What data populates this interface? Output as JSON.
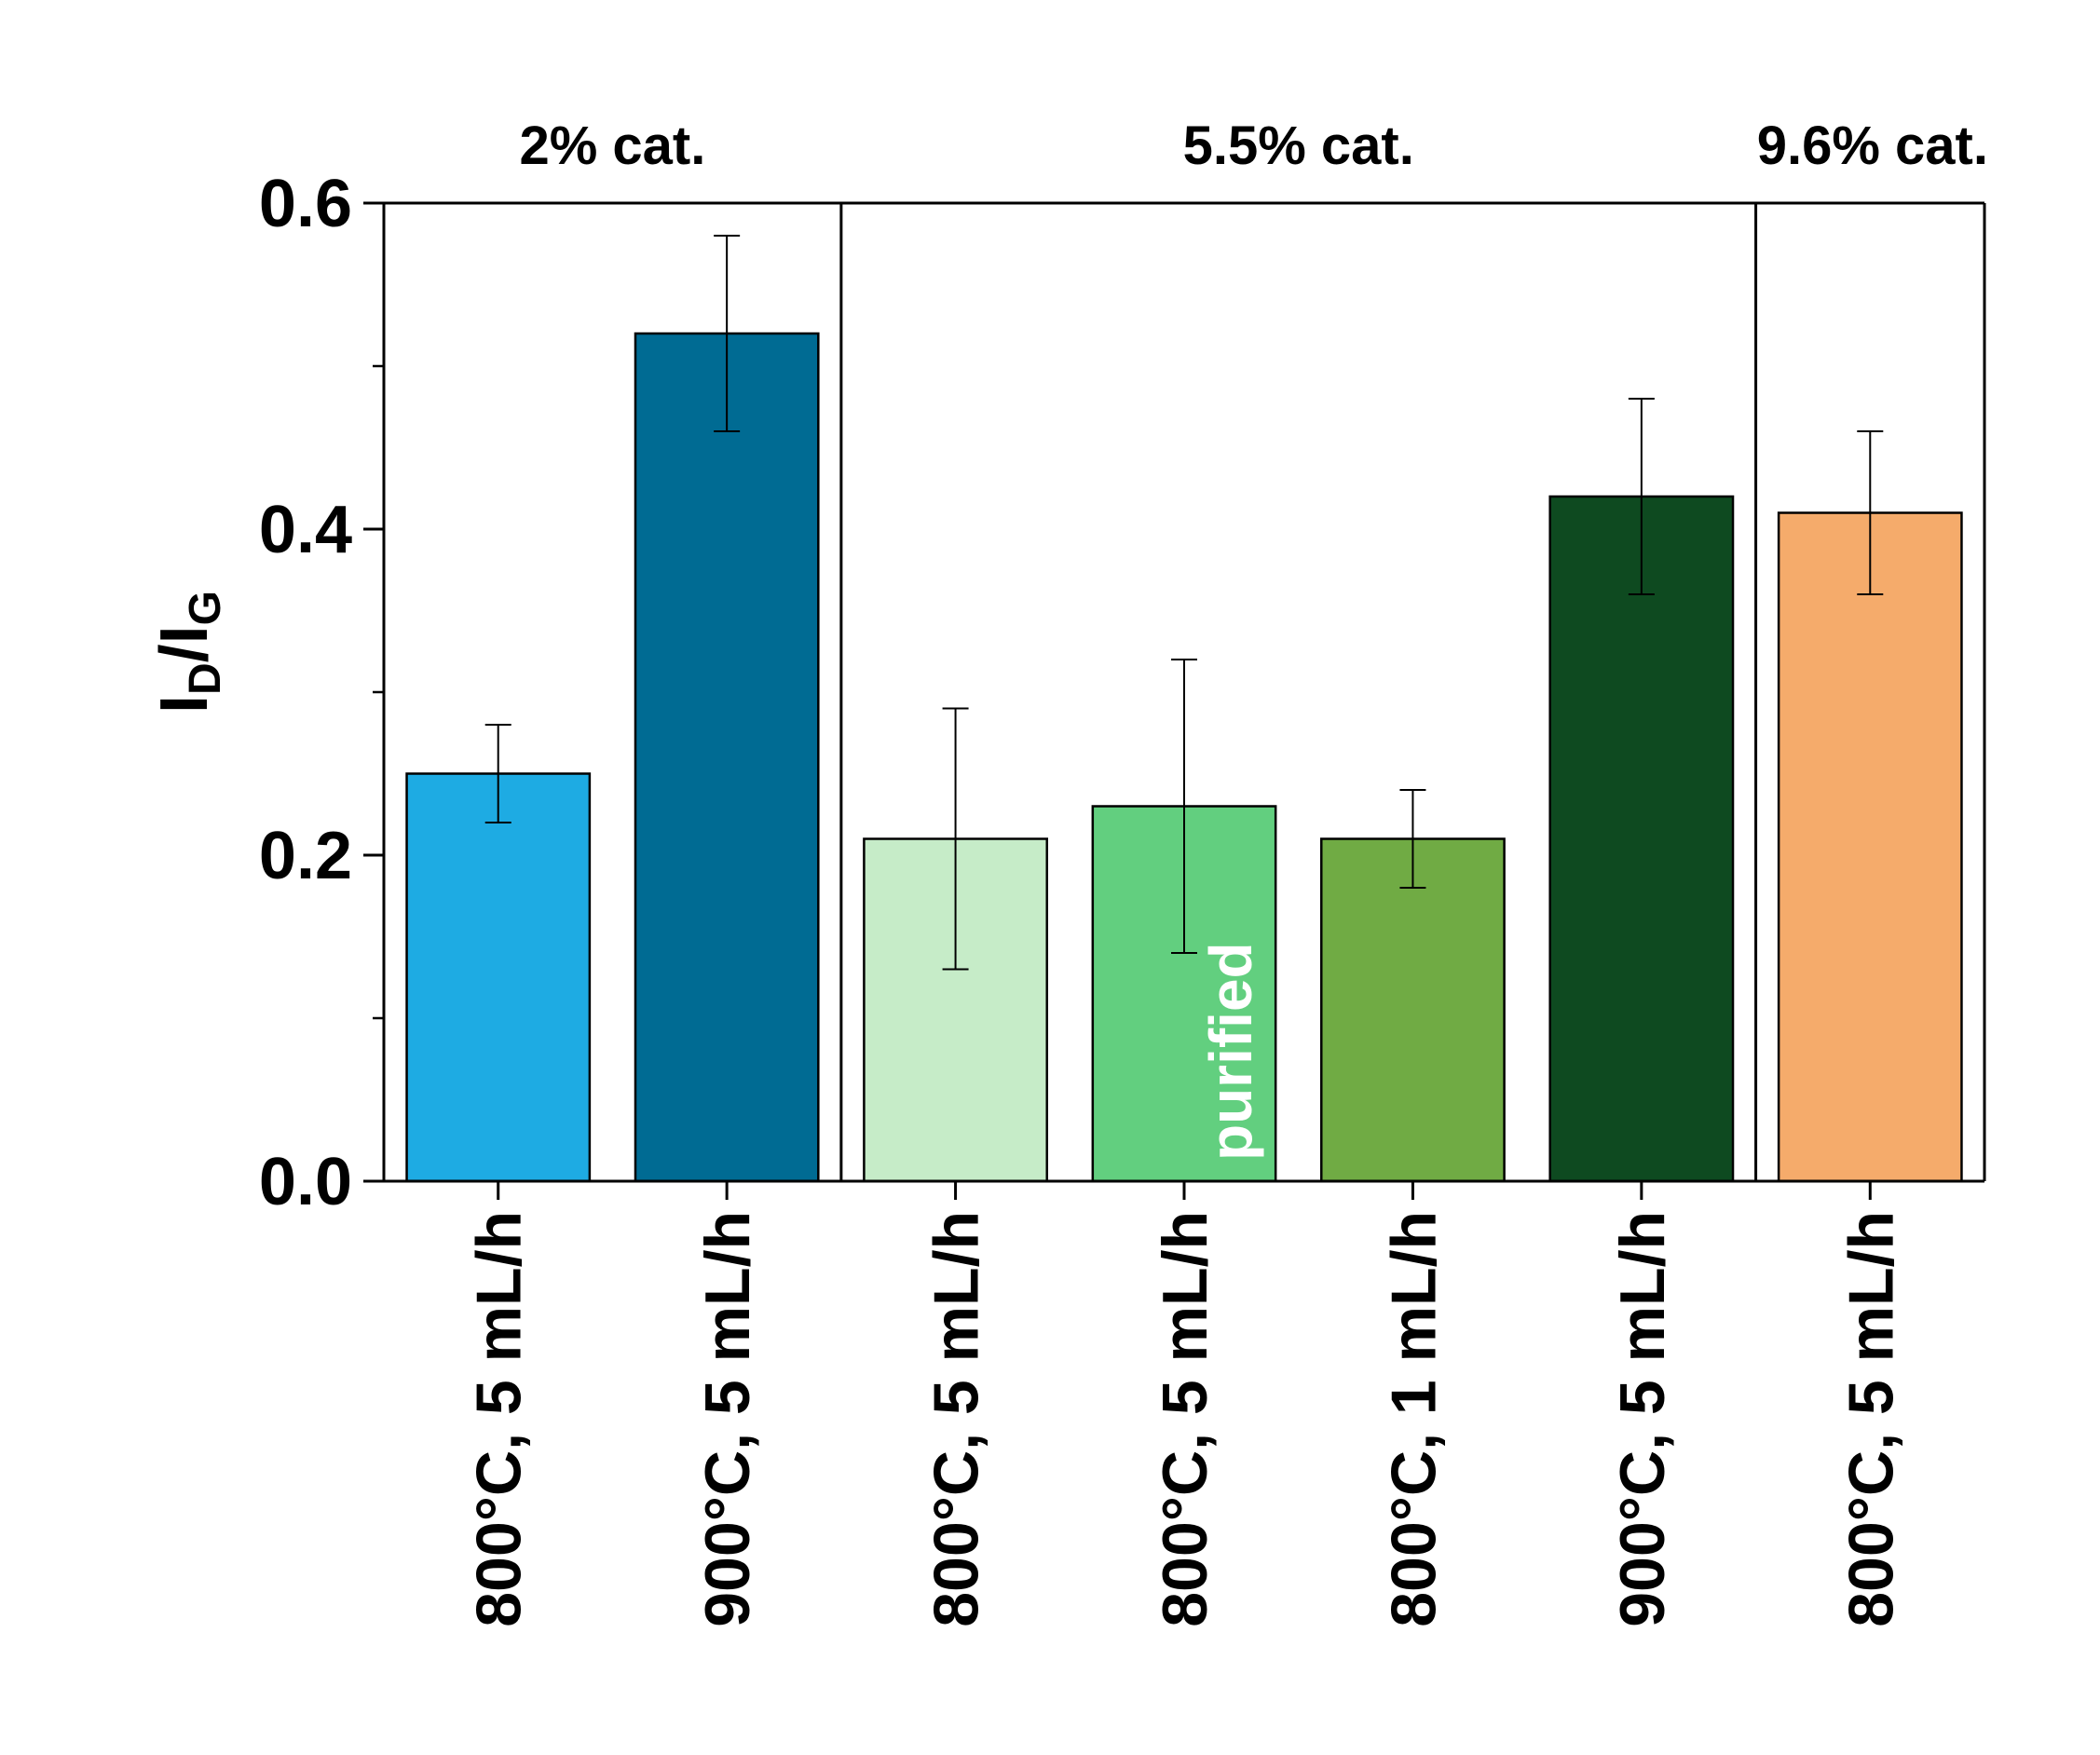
{
  "chart_data": {
    "type": "bar",
    "categories": [
      "800°C, 5 mL/h",
      "900°C, 5 mL/h",
      "800°C, 5 mL/h",
      "800°C, 5 mL/h",
      "800°C, 1 mL/h",
      "900°C, 5 mL/h",
      "800°C, 5 mL/h"
    ],
    "values": [
      0.25,
      0.52,
      0.21,
      0.23,
      0.21,
      0.42,
      0.41
    ],
    "error_low": [
      0.22,
      0.46,
      0.13,
      0.14,
      0.18,
      0.36,
      0.36
    ],
    "error_high": [
      0.28,
      0.58,
      0.29,
      0.32,
      0.24,
      0.48,
      0.46
    ],
    "colors": [
      "#1eabe3",
      "#006b93",
      "#c6ecc8",
      "#62cf7f",
      "#70ab44",
      "#0e4a20",
      "#f5ab6b"
    ],
    "ylabel_main": "I",
    "ylabel_sub1": "D",
    "ylabel_slash": "/I",
    "ylabel_sub2": "G",
    "ylim": [
      0,
      0.6
    ],
    "yticks": [
      "0.0",
      "0.2",
      "0.4",
      "0.6"
    ],
    "ytick_values": [
      0.0,
      0.2,
      0.4,
      0.6
    ],
    "minor_ticks": [
      0.1,
      0.3,
      0.5
    ],
    "groups": [
      {
        "label": "2% cat.",
        "first": 0,
        "last": 1
      },
      {
        "label": "5.5% cat.",
        "first": 2,
        "last": 5
      },
      {
        "label": "9.6% cat.",
        "first": 6,
        "last": 6
      }
    ],
    "annotations": [
      {
        "text": "purified",
        "bar_index": 3
      }
    ],
    "grid": false
  }
}
